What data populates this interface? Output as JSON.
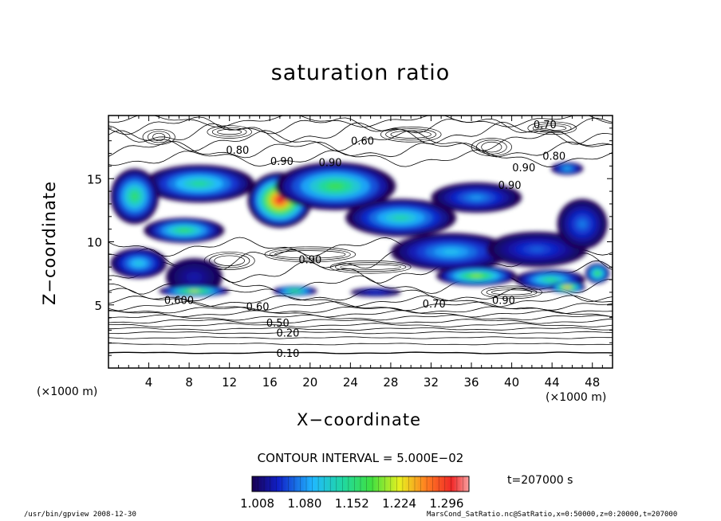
{
  "chart_data": {
    "type": "heatmap",
    "title": "saturation ratio",
    "xlabel": "X−coordinate",
    "ylabel": "Z−coordinate",
    "x_unit": "(×1000 m)",
    "y_unit": "(×1000 m)",
    "xlim": [
      0,
      50
    ],
    "ylim": [
      0,
      20
    ],
    "x_ticks": [
      4,
      8,
      12,
      16,
      20,
      24,
      28,
      32,
      36,
      40,
      44,
      48
    ],
    "y_ticks": [
      5,
      10,
      15
    ],
    "contour_interval_text": "CONTOUR INTERVAL = 5.000E−02",
    "time_label": "t=207000 s",
    "colorbar": {
      "min": 1.0,
      "max": 1.33,
      "tick_values": [
        1.008,
        1.08,
        1.152,
        1.224,
        1.296
      ],
      "tick_labels": [
        "1.008",
        "1.080",
        "1.152",
        "1.224",
        "1.296"
      ]
    },
    "contour_labels": [
      {
        "text": "0.10",
        "x": 17.8,
        "y": 1.2
      },
      {
        "text": "0.20",
        "x": 17.8,
        "y": 2.8
      },
      {
        "text": "0.50",
        "x": 16.8,
        "y": 3.6
      },
      {
        "text": "0.60",
        "x": 14.8,
        "y": 4.9
      },
      {
        "text": "0.600",
        "x": 7.0,
        "y": 5.4
      },
      {
        "text": "0.70",
        "x": 32.3,
        "y": 5.1
      },
      {
        "text": "0.90",
        "x": 39.2,
        "y": 5.4
      },
      {
        "text": "0.90",
        "x": 20.0,
        "y": 8.6
      },
      {
        "text": "0.80",
        "x": 12.8,
        "y": 17.3
      },
      {
        "text": "0.60",
        "x": 25.2,
        "y": 18.0
      },
      {
        "text": "0.90",
        "x": 17.2,
        "y": 16.4
      },
      {
        "text": "0.90",
        "x": 22.0,
        "y": 16.3
      },
      {
        "text": "0.70",
        "x": 43.3,
        "y": 19.3
      },
      {
        "text": "0.80",
        "x": 44.2,
        "y": 16.8
      },
      {
        "text": "0.90",
        "x": 41.2,
        "y": 15.9
      },
      {
        "text": "0.90",
        "x": 39.8,
        "y": 14.5
      }
    ],
    "saturated_regions": [
      {
        "cx": 17.0,
        "cy": 13.3,
        "rx": 3.2,
        "ry": 2.2,
        "peak": 1.3
      },
      {
        "cx": 22.5,
        "cy": 14.4,
        "rx": 6.0,
        "ry": 1.9,
        "peak": 1.17
      },
      {
        "cx": 9.0,
        "cy": 14.6,
        "rx": 5.5,
        "ry": 1.5,
        "peak": 1.14
      },
      {
        "cx": 2.6,
        "cy": 13.6,
        "rx": 2.4,
        "ry": 2.2,
        "peak": 1.16
      },
      {
        "cx": 29.0,
        "cy": 11.9,
        "rx": 5.5,
        "ry": 1.5,
        "peak": 1.13
      },
      {
        "cx": 36.5,
        "cy": 13.5,
        "rx": 4.5,
        "ry": 1.2,
        "peak": 1.08
      },
      {
        "cx": 7.5,
        "cy": 10.9,
        "rx": 4.0,
        "ry": 1.0,
        "peak": 1.16
      },
      {
        "cx": 34.0,
        "cy": 9.2,
        "rx": 6.0,
        "ry": 1.5,
        "peak": 1.1
      },
      {
        "cx": 42.5,
        "cy": 9.4,
        "rx": 5.0,
        "ry": 1.4,
        "peak": 1.06
      },
      {
        "cx": 47.0,
        "cy": 11.4,
        "rx": 2.5,
        "ry": 2.0,
        "peak": 1.07
      },
      {
        "cx": 3.0,
        "cy": 8.3,
        "rx": 2.8,
        "ry": 1.2,
        "peak": 1.11
      },
      {
        "cx": 36.5,
        "cy": 7.3,
        "rx": 4.0,
        "ry": 0.8,
        "peak": 1.2
      },
      {
        "cx": 43.8,
        "cy": 7.0,
        "rx": 3.5,
        "ry": 0.8,
        "peak": 1.15
      },
      {
        "cx": 8.5,
        "cy": 7.2,
        "rx": 2.8,
        "ry": 1.5,
        "peak": 1.03
      },
      {
        "cx": 8.5,
        "cy": 6.1,
        "rx": 3.5,
        "ry": 0.45,
        "peak": 1.22
      },
      {
        "cx": 18.5,
        "cy": 6.1,
        "rx": 2.2,
        "ry": 0.4,
        "peak": 1.18
      },
      {
        "cx": 45.5,
        "cy": 6.4,
        "rx": 1.8,
        "ry": 0.45,
        "peak": 1.26
      },
      {
        "cx": 45.5,
        "cy": 15.8,
        "rx": 1.6,
        "ry": 0.5,
        "peak": 1.1
      },
      {
        "cx": 26.5,
        "cy": 6.0,
        "rx": 2.5,
        "ry": 0.35,
        "peak": 1.05
      },
      {
        "cx": 48.5,
        "cy": 7.5,
        "rx": 1.2,
        "ry": 0.8,
        "peak": 1.18
      }
    ]
  },
  "footer": {
    "left": "/usr/bin/gpview   2008-12-30",
    "right": "MarsCond_SatRatio.nc@SatRatio,x=0:50000,z=0:20000,t=207000"
  }
}
